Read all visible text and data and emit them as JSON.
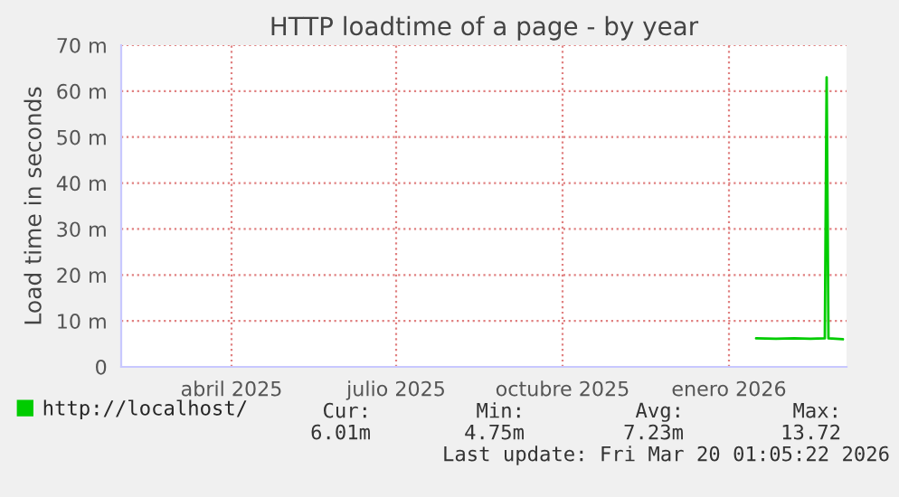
{
  "chart_data": {
    "type": "line",
    "title": "HTTP loadtime of a page - by year",
    "ylabel": "Load time in seconds",
    "x": [
      "2026-01-30",
      "2026-02-10",
      "2026-02-20",
      "2026-03-01",
      "2026-03-09",
      "2026-03-10",
      "2026-03-11",
      "2026-03-19"
    ],
    "series": [
      {
        "name": "http://localhost/",
        "color": "#00cc00",
        "values": [
          6.2,
          6.1,
          6.2,
          6.1,
          6.2,
          63,
          6.2,
          6.0
        ]
      }
    ],
    "xlim": [
      "2025-02-13",
      "2026-03-21"
    ],
    "xticks": [
      {
        "value": "2025-04-15",
        "label": "abril 2025"
      },
      {
        "value": "2025-07-15",
        "label": "julio 2025"
      },
      {
        "value": "2025-10-15",
        "label": "octubre 2025"
      },
      {
        "value": "2026-01-15",
        "label": "enero 2026"
      }
    ],
    "ylim": [
      0,
      70
    ],
    "yticks": [
      0,
      {
        "value": 10,
        "label": "10 m"
      },
      {
        "value": 20,
        "label": "20 m"
      },
      {
        "value": 30,
        "label": "30 m"
      },
      {
        "value": 40,
        "label": "40 m"
      },
      {
        "value": 50,
        "label": "50 m"
      },
      {
        "value": 60,
        "label": "60 m"
      },
      {
        "value": 70,
        "label": "70 m"
      }
    ],
    "grid": true,
    "legend": "bottom",
    "annotations": [
      "Cur:",
      "Min:",
      "Avg:",
      "Max:",
      "6.01m",
      "4.75m",
      "7.23m",
      "13.72",
      "Last update: Fri Mar 20 01:05:22 2026"
    ]
  }
}
